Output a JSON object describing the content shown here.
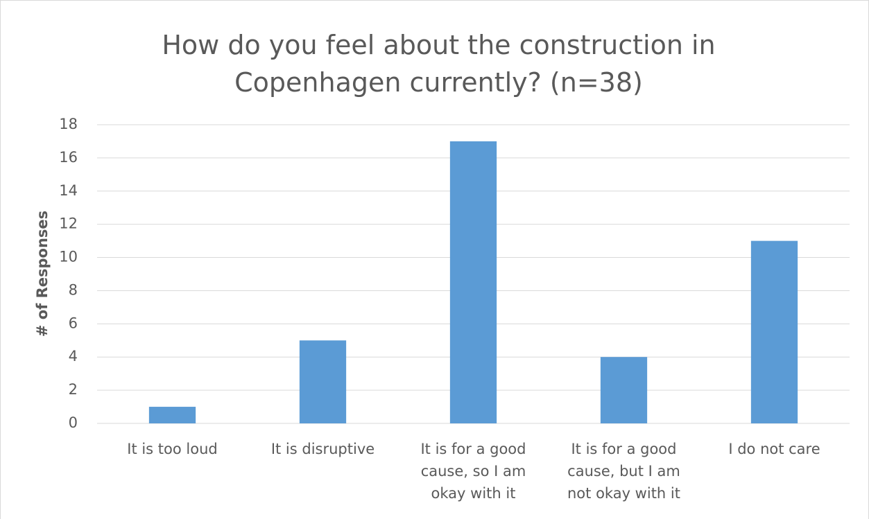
{
  "chart_data": {
    "type": "bar",
    "title": "How do you feel about the construction in Copenhagen currently? (n=38)",
    "y_label": "# of Responses",
    "categories": [
      "It is too loud",
      "It is disruptive",
      "It is for a good cause, so I am okay with it",
      "It is for a good cause, but I am not okay with it",
      "I do not care"
    ],
    "values": [
      1,
      5,
      17,
      4,
      11
    ],
    "color": "#5b9bd5",
    "ylim": [
      0,
      18
    ],
    "yticks": [
      0,
      2,
      4,
      6,
      8,
      10,
      12,
      14,
      16,
      18
    ],
    "grid": true
  }
}
